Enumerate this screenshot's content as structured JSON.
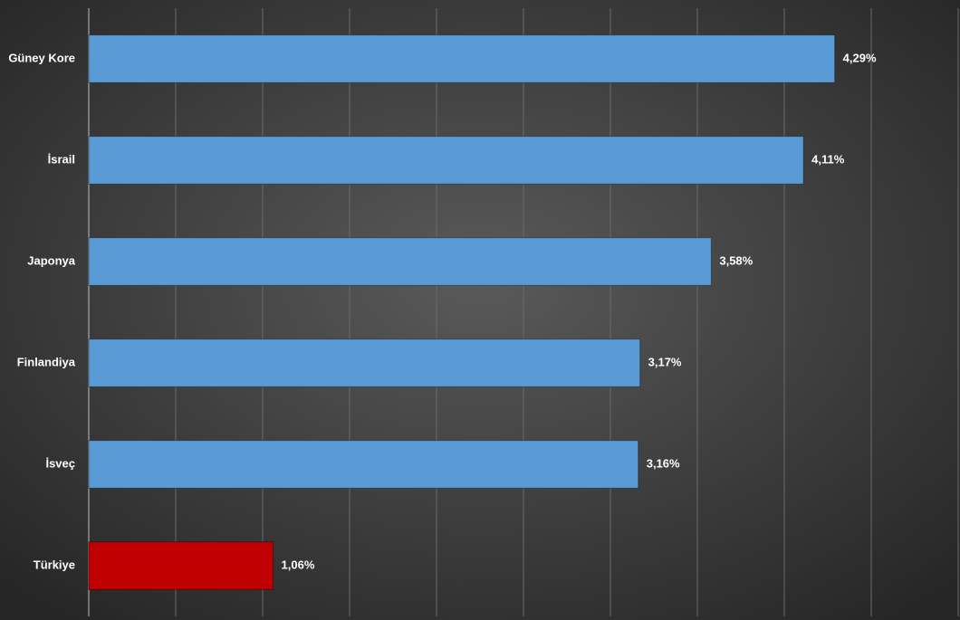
{
  "chart_data": {
    "type": "hbar",
    "categories": [
      "Güney Kore",
      "İsrail",
      "Japonya",
      "Finlandiya",
      "İsveç",
      "Türkiye"
    ],
    "values": [
      4.29,
      4.11,
      3.58,
      3.17,
      3.16,
      1.06
    ],
    "value_labels": [
      "4,29%",
      "4,11%",
      "3,58%",
      "3,17%",
      "3,16%",
      "1,06%"
    ],
    "colors": [
      "#5b9bd5",
      "#5b9bd5",
      "#5b9bd5",
      "#5b9bd5",
      "#5b9bd5",
      "#c00000"
    ],
    "xlim": [
      0,
      5
    ],
    "xticks": [
      0,
      0.5,
      1,
      1.5,
      2,
      2.5,
      3,
      3.5,
      4,
      4.5,
      5
    ],
    "grid": true
  }
}
